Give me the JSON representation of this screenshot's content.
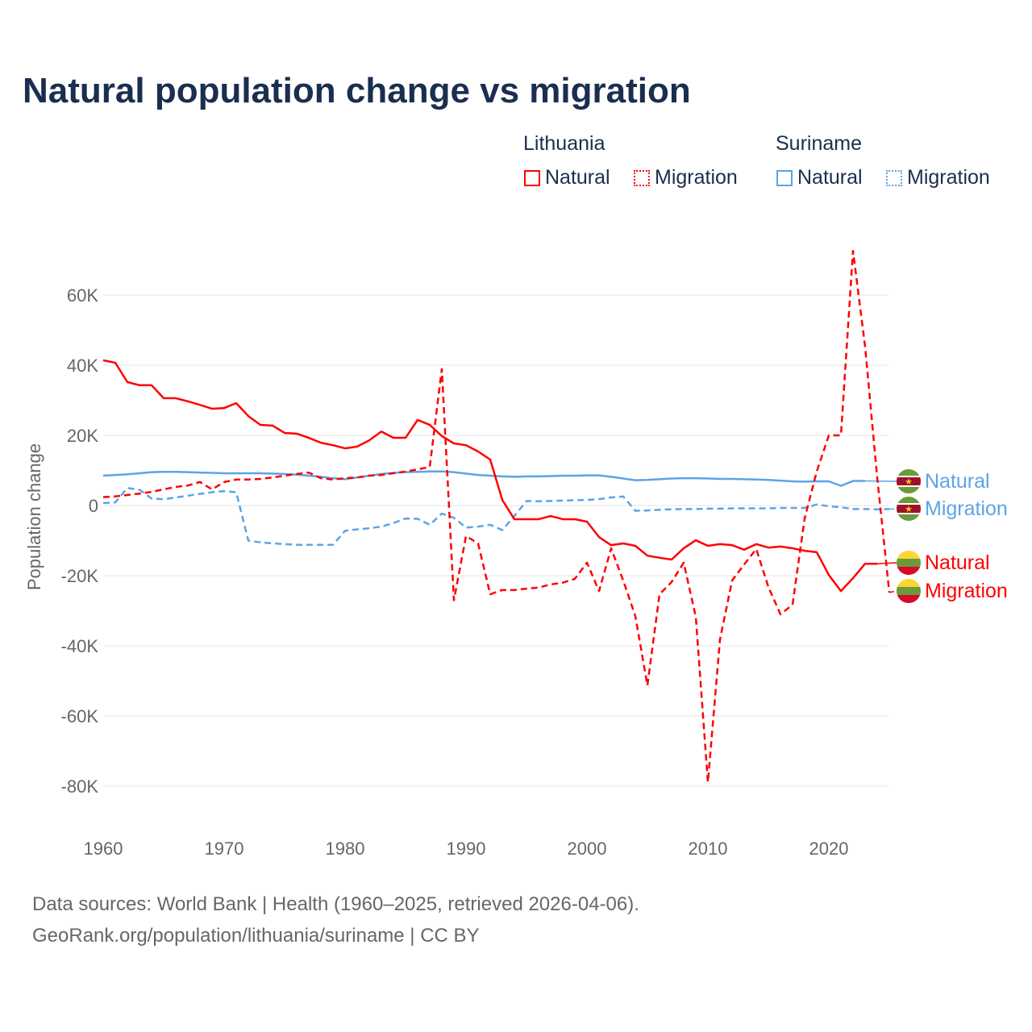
{
  "chart_data": {
    "type": "line",
    "title": "Natural population change vs migration",
    "ylabel": "Population change",
    "xlabel": "",
    "xlim": [
      1960,
      2025
    ],
    "ylim": [
      -90000,
      75000
    ],
    "x_ticks": [
      1960,
      1970,
      1980,
      1990,
      2000,
      2010,
      2020
    ],
    "x_tick_labels": [
      "1960",
      "1970",
      "1980",
      "1990",
      "2000",
      "2010",
      "2020"
    ],
    "y_ticks": [
      60000,
      40000,
      20000,
      0,
      -20000,
      -40000,
      -60000,
      -80000
    ],
    "y_tick_labels": [
      "60K",
      "40K",
      "20K",
      "0",
      "-20K",
      "-40K",
      "-60K",
      "-80K"
    ],
    "grid": true,
    "legend_position": "top-right",
    "legend_groups": [
      {
        "name": "Lithuania",
        "items": [
          "Natural",
          "Migration"
        ]
      },
      {
        "name": "Suriname",
        "items": [
          "Natural",
          "Migration"
        ]
      }
    ],
    "series": [
      {
        "country": "Lithuania",
        "name": "Natural",
        "style": "solid",
        "color": "#ff0000",
        "start_year": 1960,
        "values": [
          41400,
          40700,
          35200,
          34300,
          34300,
          30600,
          30600,
          29700,
          28700,
          27600,
          27800,
          29200,
          25500,
          23000,
          22800,
          20700,
          20500,
          19300,
          17900,
          17200,
          16300,
          16800,
          18600,
          21100,
          19300,
          19300,
          24400,
          23000,
          19800,
          17700,
          17200,
          15400,
          13100,
          1600,
          -3900,
          -3900,
          -3900,
          -3000,
          -3900,
          -3900,
          -4600,
          -9000,
          -11300,
          -10800,
          -11500,
          -14300,
          -14900,
          -15400,
          -12200,
          -9900,
          -11500,
          -11000,
          -11300,
          -12600,
          -11000,
          -12000,
          -11700,
          -12200,
          -12900,
          -13300,
          -19800,
          -24400,
          -20700,
          -16600,
          -16600
        ]
      },
      {
        "country": "Lithuania",
        "name": "Migration",
        "style": "dashed",
        "color": "#ff0000",
        "start_year": 1960,
        "values": [
          2400,
          2600,
          3000,
          3400,
          3900,
          4600,
          5300,
          5700,
          6700,
          4600,
          6700,
          7400,
          7400,
          7600,
          8000,
          8500,
          9000,
          9400,
          7800,
          7400,
          7800,
          8000,
          8500,
          8700,
          9200,
          9700,
          10300,
          11000,
          38900,
          -27000,
          -8700,
          -10800,
          -25300,
          -24100,
          -24100,
          -23700,
          -23400,
          -22500,
          -22000,
          -20900,
          -16300,
          -24400,
          -12200,
          -21400,
          -31500,
          -51300,
          -25300,
          -21800,
          -16300,
          -31700,
          -78900,
          -38200,
          -21400,
          -16800,
          -12400,
          -23200,
          -31000,
          -28300,
          -3700,
          9700,
          20000,
          20000,
          72600,
          45300,
          8000,
          -24800
        ]
      },
      {
        "country": "Suriname",
        "name": "Natural",
        "style": "solid",
        "color": "#5ba4e8",
        "start_year": 1960,
        "values": [
          8500,
          8700,
          8900,
          9200,
          9500,
          9600,
          9600,
          9500,
          9400,
          9300,
          9200,
          9200,
          9200,
          9200,
          9100,
          9000,
          8800,
          8500,
          8200,
          7800,
          7500,
          8000,
          8500,
          9000,
          9300,
          9500,
          9600,
          9700,
          9700,
          9500,
          9100,
          8700,
          8500,
          8300,
          8200,
          8300,
          8300,
          8400,
          8500,
          8500,
          8600,
          8600,
          8200,
          7700,
          7200,
          7300,
          7500,
          7700,
          7800,
          7800,
          7700,
          7600,
          7600,
          7500,
          7400,
          7300,
          7100,
          6900,
          6800,
          6900,
          6900,
          5600,
          7000,
          7000
        ]
      },
      {
        "country": "Suriname",
        "name": "Migration",
        "style": "dashed",
        "color": "#5ba4e8",
        "start_year": 1960,
        "values": [
          700,
          900,
          5000,
          4500,
          2000,
          1800,
          2300,
          2800,
          3300,
          3800,
          4100,
          3800,
          -10000,
          -10500,
          -10800,
          -11000,
          -11200,
          -11200,
          -11200,
          -11200,
          -7200,
          -6800,
          -6500,
          -6000,
          -5000,
          -3700,
          -3800,
          -5500,
          -2300,
          -3500,
          -6300,
          -6000,
          -5500,
          -7000,
          -3000,
          1300,
          1200,
          1300,
          1400,
          1500,
          1600,
          1800,
          2300,
          2600,
          -1500,
          -1400,
          -1200,
          -1100,
          -1000,
          -1000,
          -900,
          -900,
          -800,
          -800,
          -800,
          -800,
          -700,
          -700,
          -700,
          300,
          -200,
          -500,
          -1000,
          -1000,
          -1100,
          -1000
        ]
      }
    ],
    "end_labels": [
      {
        "country": "Suriname",
        "text": "Natural",
        "color": "#5ba4e8"
      },
      {
        "country": "Suriname",
        "text": "Migration",
        "color": "#5ba4e8"
      },
      {
        "country": "Lithuania",
        "text": "Natural",
        "color": "#ff0000"
      },
      {
        "country": "Lithuania",
        "text": "Migration",
        "color": "#ff0000"
      }
    ]
  },
  "sources": {
    "line1": "Data sources: World Bank | Health (1960–2025, retrieved 2026-04-06).",
    "line2": "GeoRank.org/population/lithuania/suriname | CC BY"
  }
}
